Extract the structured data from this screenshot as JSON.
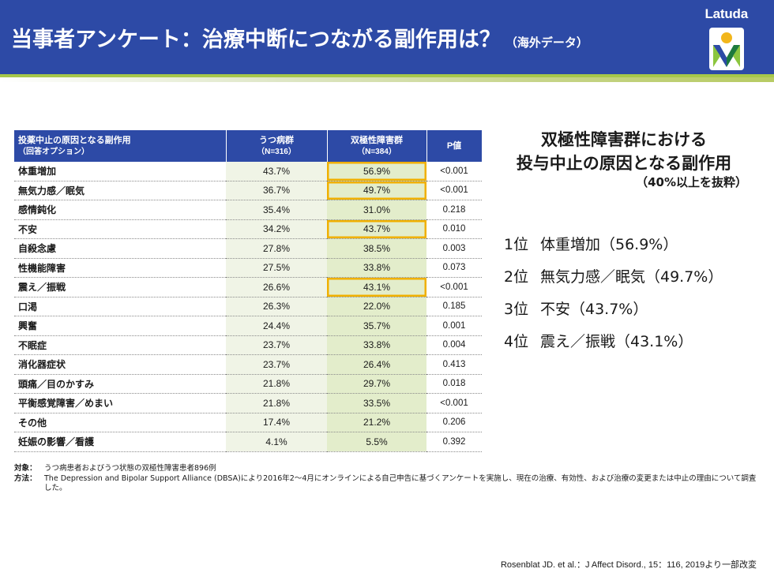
{
  "header": {
    "title": "当事者アンケート：治療中断につながる副作用は？",
    "title_sub": "（海外データ）",
    "brand": "Latuda"
  },
  "colors": {
    "header_blue": "#2d4aa6",
    "accent_green": "#a6c74a",
    "highlight_orange": "#f0b000",
    "cell_green_light": "#f0f4e6",
    "cell_green": "#e3edcb"
  },
  "table": {
    "headers": {
      "c0_line1": "投薬中止の原因となる副作用",
      "c0_line2": "（回答オプション）",
      "c1_line1": "うつ病群",
      "c1_line2": "（N=316）",
      "c2_line1": "双極性障害群",
      "c2_line2": "（N=384）",
      "c3": "P値"
    },
    "rows": [
      {
        "name": "体重増加",
        "dep": "43.7%",
        "bip": "56.9%",
        "p": "<0.001"
      },
      {
        "name": "無気力感／眠気",
        "dep": "36.7%",
        "bip": "49.7%",
        "p": "<0.001"
      },
      {
        "name": "感情鈍化",
        "dep": "35.4%",
        "bip": "31.0%",
        "p": "0.218"
      },
      {
        "name": "不安",
        "dep": "34.2%",
        "bip": "43.7%",
        "p": "0.010"
      },
      {
        "name": "自殺念慮",
        "dep": "27.8%",
        "bip": "38.5%",
        "p": "0.003"
      },
      {
        "name": "性機能障害",
        "dep": "27.5%",
        "bip": "33.8%",
        "p": "0.073"
      },
      {
        "name": "震え／振戦",
        "dep": "26.6%",
        "bip": "43.1%",
        "p": "<0.001"
      },
      {
        "name": "口渇",
        "dep": "26.3%",
        "bip": "22.0%",
        "p": "0.185"
      },
      {
        "name": "興奮",
        "dep": "24.4%",
        "bip": "35.7%",
        "p": "0.001"
      },
      {
        "name": "不眠症",
        "dep": "23.7%",
        "bip": "33.8%",
        "p": "0.004"
      },
      {
        "name": "消化器症状",
        "dep": "23.7%",
        "bip": "26.4%",
        "p": "0.413"
      },
      {
        "name": "頭痛／目のかすみ",
        "dep": "21.8%",
        "bip": "29.7%",
        "p": "0.018"
      },
      {
        "name": "平衡感覚障害／めまい",
        "dep": "21.8%",
        "bip": "33.5%",
        "p": "<0.001"
      },
      {
        "name": "その他",
        "dep": "17.4%",
        "bip": "21.2%",
        "p": "0.206"
      },
      {
        "name": "妊娠の影響／看護",
        "dep": "4.1%",
        "bip": "5.5%",
        "p": "0.392"
      }
    ]
  },
  "panel": {
    "title_line1": "双極性障害群における",
    "title_line2": "投与中止の原因となる副作用",
    "subtitle": "（40%以上を抜粋）",
    "ranks": [
      {
        "num": "1位",
        "text": "体重増加（56.9%）"
      },
      {
        "num": "2位",
        "text": "無気力感／眠気（49.7%）"
      },
      {
        "num": "3位",
        "text": "不安（43.7%）"
      },
      {
        "num": "4位",
        "text": "震え／振戦（43.1%）"
      }
    ]
  },
  "notes": {
    "target_label": "対象：",
    "target_text": "うつ病患者およびうつ状態の双極性障害患者896例",
    "method_label": "方法：",
    "method_text": "The Depression and Bipolar Support Alliance (DBSA)により2016年2～4月にオンラインによる自己申告に基づくアンケートを実施し、現在の治療、有効性、および治療の変更または中止の理由について調査した。"
  },
  "reference": "Rosenblat JD. et al.：J Affect Disord., 15：116, 2019より一部改変"
}
